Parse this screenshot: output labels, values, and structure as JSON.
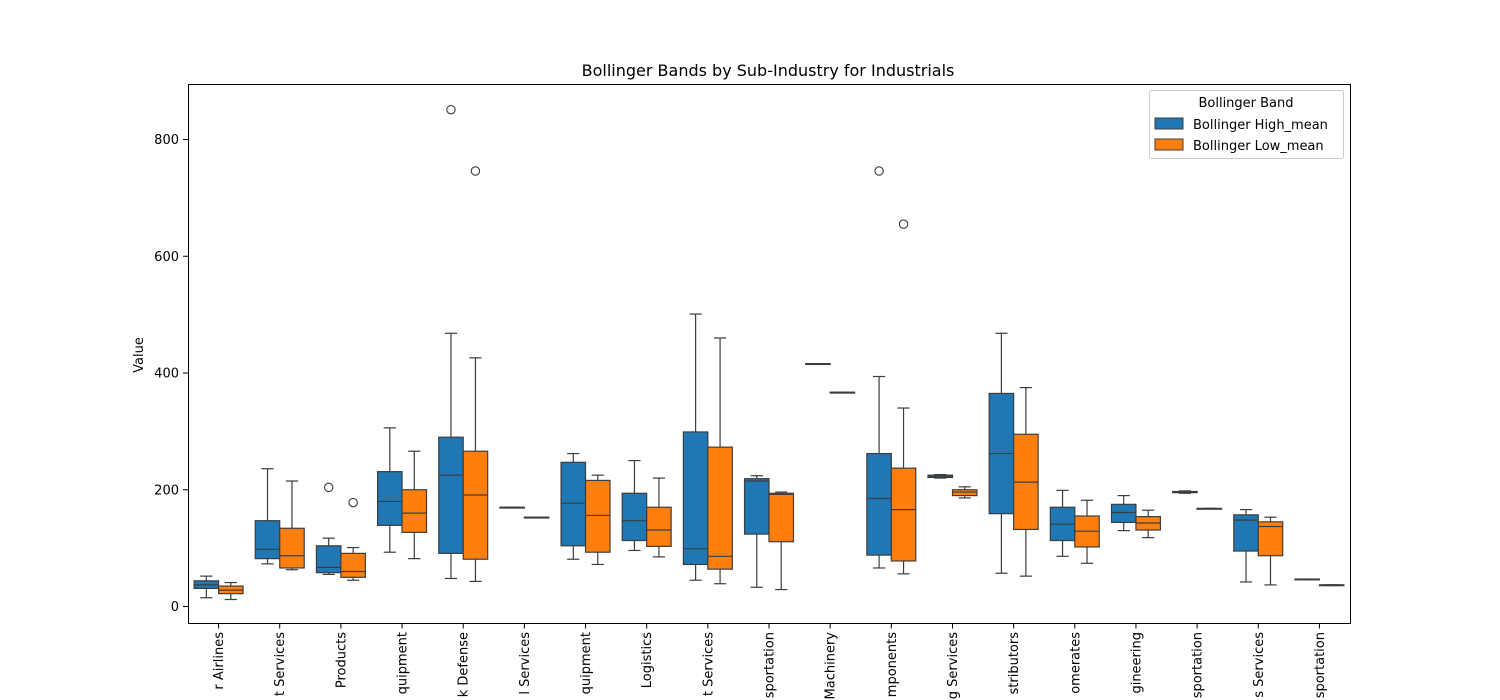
{
  "chart_data": {
    "type": "box",
    "title": "Bollinger Bands by Sub-Industry for Industrials",
    "xlabel": "",
    "ylabel": "Value",
    "ylim": [
      -25,
      890
    ],
    "yticks": [
      0,
      200,
      400,
      600,
      800
    ],
    "grid": false,
    "legend": {
      "title": "Bollinger Band",
      "placement": "top-right"
    },
    "categories": [
      "Passenger Airlines",
      "Environmental & Facilities Services",
      "Building Products",
      "Construction Machinery & Heavy Transportation Equipment",
      "Aerospace & Defense",
      "Human Resource & Employment Services",
      "Electrical Components & Equipment",
      "Air Freight & Logistics",
      "Research & Consulting Services",
      "Cargo Ground Transportation",
      "Agricultural & Farm Machinery",
      "Electrical Components",
      "Data Processing & Outsourced Services",
      "Trading Companies & Distributors",
      "Industrial Conglomerates",
      "Construction & Engineering",
      "Rail Transportation",
      "Diversified Support Services",
      "Marine Transportation"
    ],
    "visible_tick_labels": [
      "r Airlines",
      "t Services",
      "Products",
      "quipment",
      "k Defense",
      "l Services",
      "quipment",
      "Logistics",
      "t Services",
      "sportation",
      "Machinery",
      "mponents",
      "g Services",
      "stributors",
      "omerates",
      "gineering",
      "sportation",
      "s Services",
      "sportation"
    ],
    "series": [
      {
        "name": "Bollinger High_mean",
        "color": "#1f77b4",
        "boxes": [
          {
            "whislo": 15,
            "q1": 31,
            "med": 37,
            "q3": 44,
            "whishi": 52,
            "fliers": []
          },
          {
            "whislo": 73,
            "q1": 82,
            "med": 98,
            "q3": 147,
            "whishi": 236,
            "fliers": []
          },
          {
            "whislo": 55,
            "q1": 58,
            "med": 67,
            "q3": 104,
            "whishi": 117,
            "fliers": [
              204
            ]
          },
          {
            "whislo": 93,
            "q1": 139,
            "med": 180,
            "q3": 231,
            "whishi": 306,
            "fliers": []
          },
          {
            "whislo": 48,
            "q1": 91,
            "med": 225,
            "q3": 290,
            "whishi": 468,
            "fliers": [
              851
            ]
          },
          {
            "whislo": 170,
            "q1": 170,
            "med": 170,
            "q3": 170,
            "whishi": 170,
            "fliers": []
          },
          {
            "whislo": 81,
            "q1": 104,
            "med": 177,
            "q3": 247,
            "whishi": 262,
            "fliers": []
          },
          {
            "whislo": 96,
            "q1": 113,
            "med": 147,
            "q3": 194,
            "whishi": 250,
            "fliers": []
          },
          {
            "whislo": 45,
            "q1": 72,
            "med": 99,
            "q3": 299,
            "whishi": 501,
            "fliers": []
          },
          {
            "whislo": 33,
            "q1": 124,
            "med": 215,
            "q3": 219,
            "whishi": 224,
            "fliers": []
          },
          {
            "whislo": 416,
            "q1": 416,
            "med": 416,
            "q3": 416,
            "whishi": 416,
            "fliers": []
          },
          {
            "whislo": 66,
            "q1": 88,
            "med": 185,
            "q3": 262,
            "whishi": 394,
            "fliers": [
              746
            ]
          },
          {
            "whislo": 220,
            "q1": 221,
            "med": 223,
            "q3": 225,
            "whishi": 226,
            "fliers": []
          },
          {
            "whislo": 57,
            "q1": 159,
            "med": 262,
            "q3": 365,
            "whishi": 468,
            "fliers": []
          },
          {
            "whislo": 86,
            "q1": 113,
            "med": 141,
            "q3": 170,
            "whishi": 199,
            "fliers": []
          },
          {
            "whislo": 130,
            "q1": 144,
            "med": 161,
            "q3": 175,
            "whishi": 190,
            "fliers": []
          },
          {
            "whislo": 194,
            "q1": 195,
            "med": 196,
            "q3": 197,
            "whishi": 198,
            "fliers": []
          },
          {
            "whislo": 42,
            "q1": 95,
            "med": 148,
            "q3": 157,
            "whishi": 166,
            "fliers": []
          },
          {
            "whislo": 47,
            "q1": 47,
            "med": 47,
            "q3": 47,
            "whishi": 47,
            "fliers": []
          }
        ]
      },
      {
        "name": "Bollinger Low_mean",
        "color": "#ff7f0e",
        "boxes": [
          {
            "whislo": 12,
            "q1": 22,
            "med": 28,
            "q3": 35,
            "whishi": 41,
            "fliers": []
          },
          {
            "whislo": 63,
            "q1": 66,
            "med": 87,
            "q3": 134,
            "whishi": 215,
            "fliers": []
          },
          {
            "whislo": 45,
            "q1": 50,
            "med": 60,
            "q3": 91,
            "whishi": 101,
            "fliers": [
              178
            ]
          },
          {
            "whislo": 82,
            "q1": 127,
            "med": 160,
            "q3": 200,
            "whishi": 266,
            "fliers": []
          },
          {
            "whislo": 43,
            "q1": 81,
            "med": 191,
            "q3": 266,
            "whishi": 426,
            "fliers": [
              746
            ]
          },
          {
            "whislo": 153,
            "q1": 153,
            "med": 153,
            "q3": 153,
            "whishi": 153,
            "fliers": []
          },
          {
            "whislo": 72,
            "q1": 93,
            "med": 156,
            "q3": 216,
            "whishi": 225,
            "fliers": []
          },
          {
            "whislo": 85,
            "q1": 103,
            "med": 131,
            "q3": 170,
            "whishi": 220,
            "fliers": []
          },
          {
            "whislo": 39,
            "q1": 64,
            "med": 86,
            "q3": 273,
            "whishi": 460,
            "fliers": []
          },
          {
            "whislo": 29,
            "q1": 111,
            "med": 192,
            "q3": 194,
            "whishi": 196,
            "fliers": []
          },
          {
            "whislo": 367,
            "q1": 367,
            "med": 367,
            "q3": 367,
            "whishi": 367,
            "fliers": []
          },
          {
            "whislo": 56,
            "q1": 78,
            "med": 166,
            "q3": 237,
            "whishi": 340,
            "fliers": [
              655
            ]
          },
          {
            "whislo": 186,
            "q1": 190,
            "med": 196,
            "q3": 200,
            "whishi": 205,
            "fliers": []
          },
          {
            "whislo": 52,
            "q1": 132,
            "med": 213,
            "q3": 295,
            "whishi": 375,
            "fliers": []
          },
          {
            "whislo": 74,
            "q1": 102,
            "med": 129,
            "q3": 155,
            "whishi": 182,
            "fliers": []
          },
          {
            "whislo": 118,
            "q1": 131,
            "med": 143,
            "q3": 154,
            "whishi": 165,
            "fliers": []
          },
          {
            "whislo": 168,
            "q1": 168,
            "med": 168,
            "q3": 168,
            "whishi": 168,
            "fliers": []
          },
          {
            "whislo": 37,
            "q1": 87,
            "med": 137,
            "q3": 145,
            "whishi": 153,
            "fliers": []
          },
          {
            "whislo": 37,
            "q1": 37,
            "med": 37,
            "q3": 37,
            "whishi": 37,
            "fliers": []
          }
        ]
      }
    ]
  }
}
